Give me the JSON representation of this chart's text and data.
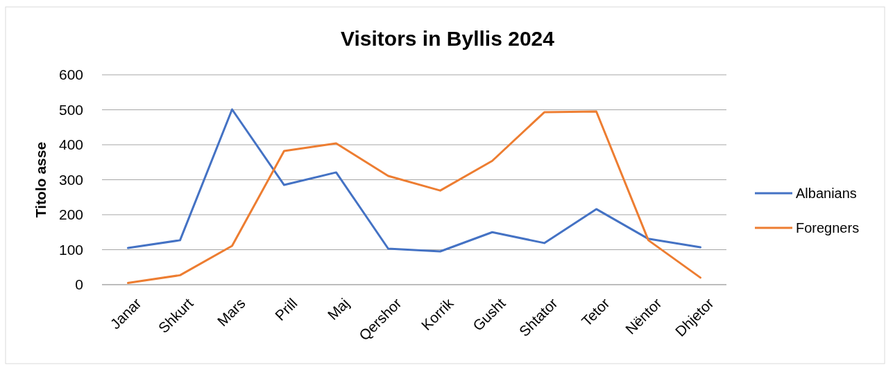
{
  "chart_data": {
    "type": "line",
    "title": "Visitors in Byllis 2024",
    "ylabel": "Titolo asse",
    "categories": [
      "Janar",
      "Shkurt",
      "Mars",
      "Prill",
      "Maj",
      "Qershor",
      "Korrik",
      "Gusht",
      "Shtator",
      "Tetor",
      "Nëntor",
      "Dhjetor"
    ],
    "series": [
      {
        "name": "Albanians",
        "color": "#4472c4",
        "values": [
          105,
          127,
          501,
          285,
          321,
          103,
          95,
          150,
          119,
          216,
          131,
          107
        ]
      },
      {
        "name": "Foregners",
        "color": "#ed7d31",
        "values": [
          5,
          27,
          111,
          382,
          404,
          311,
          269,
          354,
          493,
          495,
          127,
          20
        ]
      }
    ],
    "ylim": [
      0,
      600
    ],
    "yticks": [
      0,
      100,
      200,
      300,
      400,
      500,
      600
    ],
    "grid": "y",
    "legend": "right",
    "marker": "none",
    "line_style": "solid"
  }
}
